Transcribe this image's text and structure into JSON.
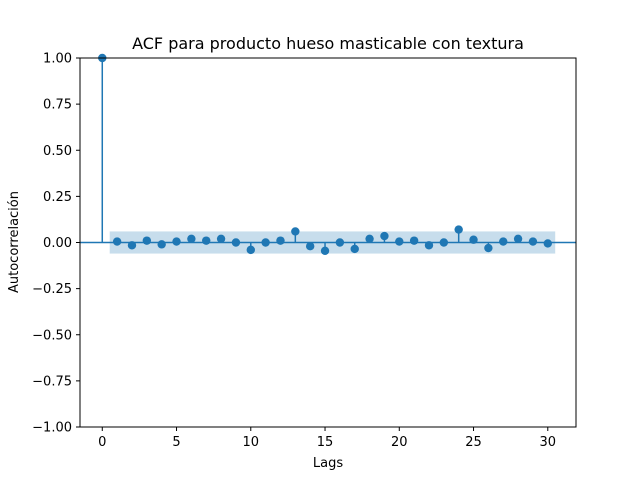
{
  "chart_data": {
    "type": "scatter",
    "subtype": "acf-stem",
    "title": "ACF para producto hueso masticable con textura",
    "xlabel": "Lags",
    "ylabel": "Autocorrelación",
    "xlim": [
      -1.5,
      31.9
    ],
    "ylim": [
      -1.0,
      1.0
    ],
    "xticks": [
      0,
      5,
      10,
      15,
      20,
      25,
      30
    ],
    "xtick_labels": [
      "0",
      "5",
      "10",
      "15",
      "20",
      "25",
      "30"
    ],
    "yticks": [
      1.0,
      0.75,
      0.5,
      0.25,
      0.0,
      -0.25,
      -0.5,
      -0.75,
      -1.0
    ],
    "ytick_labels": [
      "1.00",
      "0.75",
      "0.50",
      "0.25",
      "0.00",
      "−0.25",
      "−0.50",
      "−0.75",
      "−1.00"
    ],
    "grid": false,
    "lags": [
      0,
      1,
      2,
      3,
      4,
      5,
      6,
      7,
      8,
      9,
      10,
      11,
      12,
      13,
      14,
      15,
      16,
      17,
      18,
      19,
      20,
      21,
      22,
      23,
      24,
      25,
      26,
      27,
      28,
      29,
      30
    ],
    "values": [
      1.0,
      0.005,
      -0.015,
      0.01,
      -0.01,
      0.005,
      0.02,
      0.01,
      0.02,
      0.0,
      -0.04,
      0.0,
      0.01,
      0.06,
      -0.02,
      -0.045,
      0.0,
      -0.035,
      0.02,
      0.035,
      0.005,
      0.01,
      -0.015,
      0.0,
      0.07,
      0.015,
      -0.03,
      0.005,
      0.02,
      0.005,
      -0.005
    ],
    "confidence_band": {
      "x": [
        0.5,
        30.5
      ],
      "lower": -0.06,
      "upper": 0.06
    },
    "colors": {
      "series": "#1f77b4",
      "band": "#1f77b4"
    }
  }
}
